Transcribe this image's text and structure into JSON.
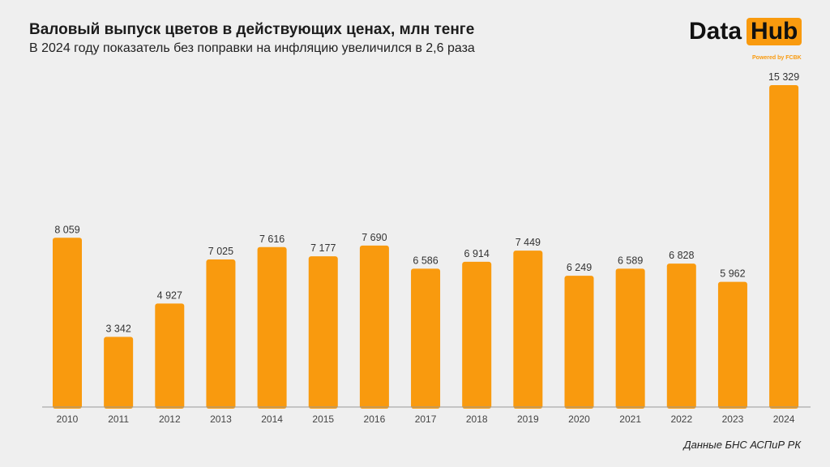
{
  "title": "Валовый выпуск цветов в действующих ценах, млн тенге",
  "subtitle": "В 2024 году показатель без поправки на инфляцию увеличился в 2,6 раза",
  "logo": {
    "text1": "Data",
    "text2": "Hub",
    "powered": "Powered by FCBK"
  },
  "source": "Данные БНС АСПиР РК",
  "colors": {
    "bar": "#f99a0e",
    "background": "#efefef"
  },
  "chart_data": {
    "type": "bar",
    "title": "Валовый выпуск цветов в действующих ценах, млн тенге",
    "categories": [
      "2010",
      "2011",
      "2012",
      "2013",
      "2014",
      "2015",
      "2016",
      "2017",
      "2018",
      "2019",
      "2020",
      "2021",
      "2022",
      "2023",
      "2024"
    ],
    "values": [
      8059,
      3342,
      4927,
      7025,
      7616,
      7177,
      7690,
      6586,
      6914,
      7449,
      6249,
      6589,
      6828,
      5962,
      15329
    ],
    "labels": [
      "8 059",
      "3 342",
      "4 927",
      "7 025",
      "7 616",
      "7 177",
      "7 690",
      "6 586",
      "6 914",
      "7 449",
      "6 249",
      "6 589",
      "6 828",
      "5 962",
      "15 329"
    ],
    "ylim": [
      0,
      15329
    ],
    "grid": false,
    "legend": "none"
  }
}
